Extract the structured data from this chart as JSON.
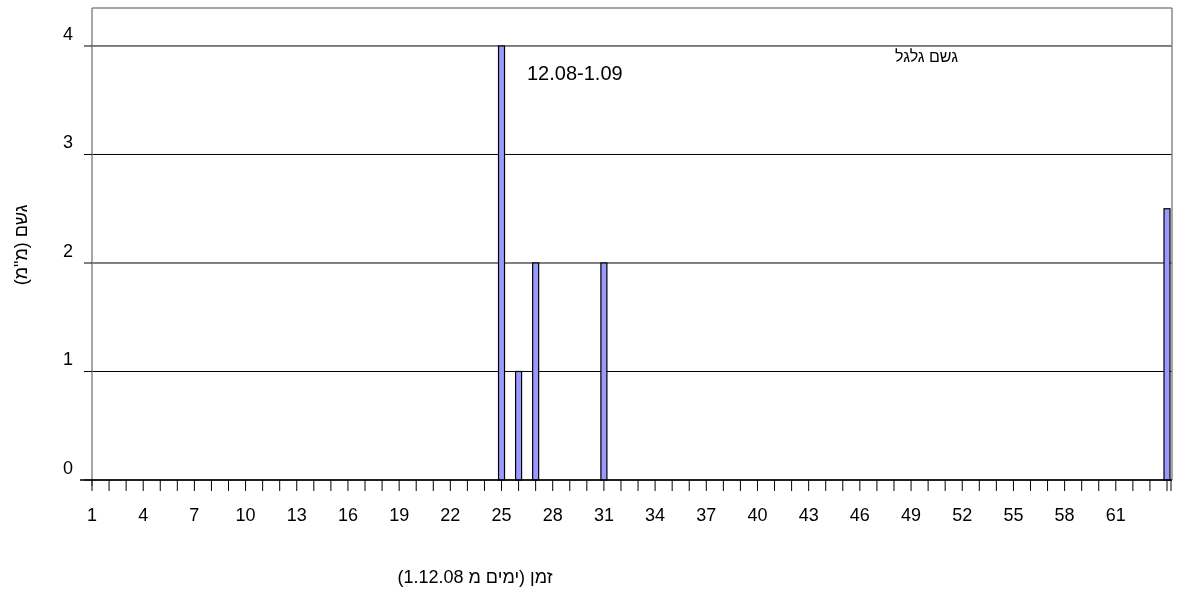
{
  "chart_data": {
    "type": "bar",
    "xlabel": "זמן (ימים מ 1.12.08)",
    "ylabel": "גשם (מ\"מ)",
    "annotations": [
      "12.08-1.09",
      "גשם גלגל"
    ],
    "categories": [
      "1",
      null,
      null,
      "4",
      null,
      null,
      "7",
      null,
      null,
      "10",
      null,
      null,
      "13",
      null,
      null,
      "16",
      null,
      null,
      "19",
      null,
      null,
      "22",
      null,
      null,
      "25",
      null,
      null,
      "28",
      null,
      null,
      "31",
      null,
      null,
      "34",
      null,
      null,
      "37",
      null,
      null,
      "40",
      null,
      null,
      "43",
      null,
      null,
      "46",
      null,
      null,
      "49",
      null,
      null,
      "52",
      null,
      null,
      "55",
      null,
      null,
      "58",
      null,
      null,
      "61",
      null,
      null,
      null
    ],
    "values": [
      0,
      0,
      0,
      0,
      0,
      0,
      0,
      0,
      0,
      0,
      0,
      0,
      0,
      0,
      0,
      0,
      0,
      0,
      0,
      0,
      0,
      0,
      0,
      0,
      4,
      1,
      2,
      0,
      0,
      0,
      2,
      0,
      0,
      0,
      0,
      0,
      0,
      0,
      0,
      0,
      0,
      0,
      0,
      0,
      0,
      0,
      0,
      0,
      0,
      0,
      0,
      0,
      0,
      0,
      0,
      0,
      0,
      0,
      0,
      0,
      0,
      0,
      0,
      2.5
    ],
    "color": "#9999ff",
    "ylim": [
      0,
      4.35
    ],
    "yticks": [
      0,
      1,
      2,
      3,
      4
    ],
    "grid": "y"
  }
}
